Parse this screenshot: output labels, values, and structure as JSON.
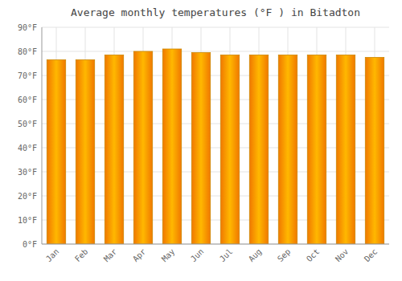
{
  "chart_data": {
    "type": "bar",
    "title": "Average monthly temperatures (°F ) in Bitadton",
    "categories": [
      "Jan",
      "Feb",
      "Mar",
      "Apr",
      "May",
      "Jun",
      "Jul",
      "Aug",
      "Sep",
      "Oct",
      "Nov",
      "Dec"
    ],
    "values": [
      76.5,
      76.5,
      78.5,
      80.0,
      81.0,
      79.5,
      78.5,
      78.5,
      78.5,
      78.5,
      78.5,
      77.5
    ],
    "color": "#FFB800",
    "ylim": [
      0,
      90
    ],
    "yticks": [
      {
        "value": 0,
        "label": "0°F"
      },
      {
        "value": 10,
        "label": "10°F"
      },
      {
        "value": 20,
        "label": "20°F"
      },
      {
        "value": 30,
        "label": "30°F"
      },
      {
        "value": 40,
        "label": "40°F"
      },
      {
        "value": 50,
        "label": "50°F"
      },
      {
        "value": 60,
        "label": "60°F"
      },
      {
        "value": 70,
        "label": "70°F"
      },
      {
        "value": 80,
        "label": "80°F"
      },
      {
        "value": 90,
        "label": "90°F"
      }
    ],
    "grid": true
  }
}
